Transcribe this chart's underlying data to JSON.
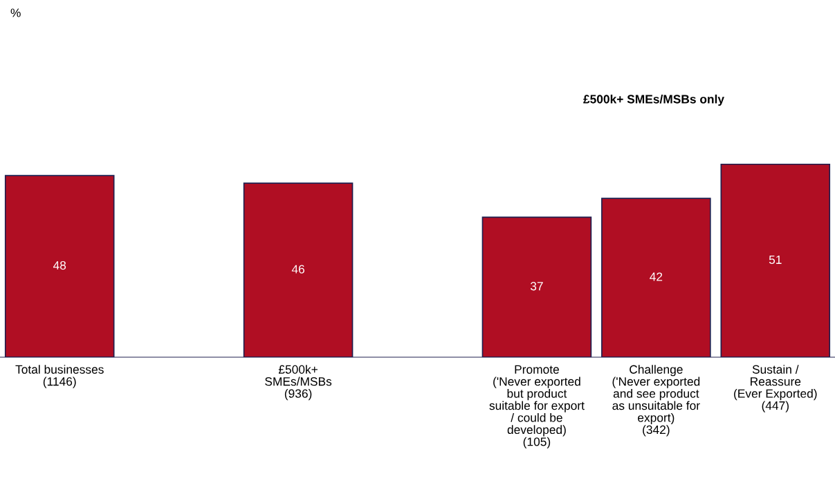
{
  "chart_data": {
    "type": "bar",
    "categories": [
      "Total businesses\n(1146)",
      null,
      "£500k+\nSMEs/MSBs\n(936)",
      null,
      "Promote\n('Never exported\nbut product\nsuitable for export\n/ could be\ndeveloped)\n(105)",
      "Challenge\n('Never exported\nand see product\nas unsuitable for\nexport)\n(342)",
      "Sustain /\nReassure\n(Ever Exported)\n(447)"
    ],
    "values": [
      48,
      null,
      46,
      null,
      37,
      42,
      51
    ],
    "color": "#b00e23",
    "data_labels": true,
    "annotations": [
      "%",
      "£500k+ SMEs/MSBs only"
    ],
    "grid": false,
    "legend": false
  }
}
